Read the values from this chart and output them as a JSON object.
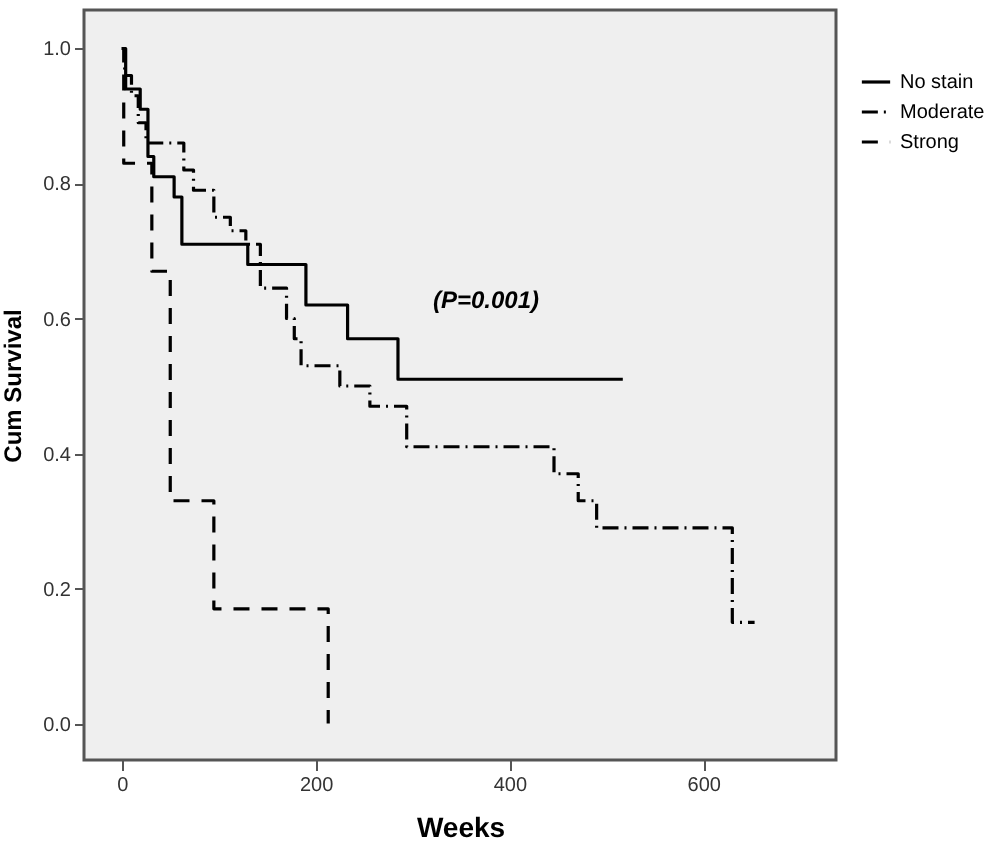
{
  "chart_data": {
    "type": "step",
    "xlabel": "Weeks",
    "ylabel": "Cum Survival",
    "annotations": [
      "(P=0.001)"
    ],
    "xlim": [
      -39,
      737
    ],
    "xticks": [
      0,
      200,
      400,
      600
    ],
    "ylim": [
      -0.054,
      1.057
    ],
    "yticks": [
      {
        "value": 0,
        "label": "0.0"
      },
      {
        "value": 0.2,
        "label": "0.2"
      },
      {
        "value": 0.4,
        "label": "0.4"
      },
      {
        "value": 0.6,
        "label": "0.6"
      },
      {
        "value": 0.8,
        "label": "0.8"
      },
      {
        "value": 1,
        "label": "1.0"
      }
    ],
    "grid": false,
    "legend": "right",
    "marker": "none",
    "series": [
      {
        "name": "No stain",
        "color": "#000000",
        "line_style": "solid",
        "x": [
          0,
          4,
          19,
          27,
          33,
          54,
          62,
          130,
          190,
          233,
          285,
          517
        ],
        "values": [
          1,
          0.94,
          0.91,
          0.84,
          0.81,
          0.78,
          0.71,
          0.68,
          0.62,
          0.57,
          0.51,
          0.51
        ]
      },
      {
        "name": "Moderate",
        "color": "#000000",
        "line_style": "dashdot",
        "x": [
          0,
          3,
          10,
          17,
          25,
          64,
          74,
          95,
          112,
          128,
          143,
          170,
          178,
          185,
          225,
          256,
          294,
          446,
          471,
          490,
          630,
          653
        ],
        "values": [
          1,
          0.96,
          0.93,
          0.89,
          0.86,
          0.82,
          0.79,
          0.75,
          0.73,
          0.71,
          0.645,
          0.6,
          0.57,
          0.53,
          0.5,
          0.47,
          0.41,
          0.37,
          0.33,
          0.29,
          0.15,
          0.15
        ]
      },
      {
        "name": "Strong",
        "color": "#000000",
        "line_style": "dashed",
        "x": [
          0,
          2,
          31,
          50,
          95,
          213
        ],
        "values": [
          1,
          0.83,
          0.67,
          0.33,
          0.17,
          0
        ]
      }
    ]
  }
}
